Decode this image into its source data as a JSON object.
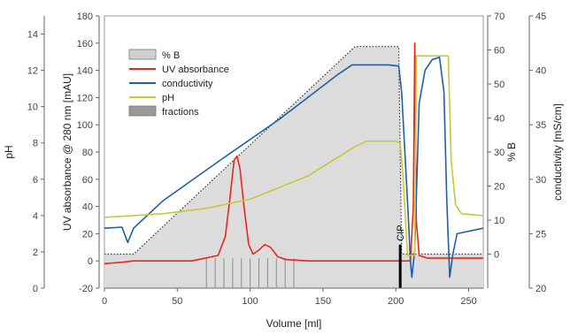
{
  "chart_data": {
    "type": "line",
    "x_axis": {
      "label": "Volume [ml]",
      "range": [
        0,
        260
      ],
      "ticks": [
        0,
        50,
        100,
        150,
        200,
        250
      ]
    },
    "axes": {
      "uv": {
        "label": "UV absorbance @ 280 nm [mAU]",
        "range": [
          -20,
          180
        ],
        "ticks": [
          -20,
          0,
          20,
          40,
          60,
          80,
          100,
          120,
          140,
          160,
          180
        ]
      },
      "ph": {
        "label": "pH",
        "range": [
          0,
          15
        ],
        "ticks": [
          0,
          2,
          4,
          6,
          8,
          10,
          12,
          14
        ]
      },
      "percent_b": {
        "label": "% B",
        "range": [
          -10,
          70
        ],
        "ticks": [
          0,
          10,
          20,
          30,
          40,
          50,
          60,
          70
        ]
      },
      "conductivity": {
        "label": "conductivity [mS/cm]",
        "range": [
          20,
          45
        ],
        "ticks": [
          20,
          25,
          30,
          35,
          40,
          45
        ]
      }
    },
    "legend": {
      "placement": "upper-left",
      "entries": [
        {
          "label": "% B",
          "key": "percent_b",
          "symbol": "fill",
          "color": "#d0d0d0"
        },
        {
          "label": "UV absorbance",
          "key": "uv",
          "symbol": "line",
          "color": "#e8251f"
        },
        {
          "label": "conductivity",
          "key": "conductivity",
          "symbol": "line",
          "color": "#1f5fa8"
        },
        {
          "label": "pH",
          "key": "ph",
          "symbol": "line",
          "color": "#c8c83a"
        },
        {
          "label": "fractions",
          "key": "fractions",
          "symbol": "fill",
          "color": "#9a9a9a"
        }
      ]
    },
    "series": [
      {
        "name": "% B",
        "axis": "percent_b",
        "color": "#808080",
        "fill": "#dcdcdc",
        "points": [
          [
            0,
            0
          ],
          [
            20,
            0
          ],
          [
            172,
            61
          ],
          [
            202,
            61
          ],
          [
            204,
            0
          ],
          [
            260,
            0
          ]
        ]
      },
      {
        "name": "UV absorbance",
        "axis": "uv",
        "color": "#e8251f",
        "points": [
          [
            0,
            -2
          ],
          [
            12,
            -1
          ],
          [
            20,
            0
          ],
          [
            60,
            0
          ],
          [
            78,
            4
          ],
          [
            83,
            18
          ],
          [
            86,
            45
          ],
          [
            89,
            74
          ],
          [
            91,
            77
          ],
          [
            93,
            68
          ],
          [
            96,
            38
          ],
          [
            99,
            12
          ],
          [
            102,
            5
          ],
          [
            106,
            8
          ],
          [
            110,
            12
          ],
          [
            114,
            10
          ],
          [
            119,
            3
          ],
          [
            125,
            1
          ],
          [
            140,
            0
          ],
          [
            210,
            0
          ],
          [
            212,
            40
          ],
          [
            213,
            160
          ],
          [
            214,
            30
          ],
          [
            216,
            4
          ],
          [
            222,
            2
          ],
          [
            260,
            2
          ]
        ]
      },
      {
        "name": "conductivity",
        "axis": "conductivity",
        "color": "#1f5fa8",
        "points": [
          [
            0,
            25.5
          ],
          [
            12,
            25.6
          ],
          [
            16,
            24.2
          ],
          [
            20,
            25.5
          ],
          [
            40,
            28.0
          ],
          [
            80,
            31.8
          ],
          [
            120,
            35.5
          ],
          [
            160,
            39.6
          ],
          [
            170,
            40.5
          ],
          [
            180,
            40.5
          ],
          [
            195,
            40.5
          ],
          [
            202,
            40.4
          ],
          [
            204,
            38.0
          ],
          [
            206,
            33.0
          ],
          [
            208,
            28.0
          ],
          [
            210,
            22.5
          ],
          [
            211,
            21.0
          ],
          [
            213,
            23.5
          ],
          [
            216,
            37.0
          ],
          [
            220,
            40.0
          ],
          [
            225,
            41.0
          ],
          [
            230,
            41.2
          ],
          [
            233,
            38.0
          ],
          [
            235,
            28.0
          ],
          [
            237,
            21.0
          ],
          [
            239,
            23.0
          ],
          [
            242,
            25.0
          ],
          [
            260,
            25.5
          ]
        ]
      },
      {
        "name": "pH",
        "axis": "ph",
        "color": "#c8c83a",
        "points": [
          [
            0,
            3.9
          ],
          [
            20,
            4.0
          ],
          [
            40,
            4.1
          ],
          [
            70,
            4.4
          ],
          [
            100,
            4.9
          ],
          [
            140,
            6.2
          ],
          [
            172,
            7.8
          ],
          [
            180,
            8.1
          ],
          [
            200,
            8.1
          ],
          [
            203,
            8.0
          ],
          [
            205,
            6.0
          ],
          [
            208,
            1.8
          ],
          [
            213,
            1.8
          ],
          [
            214,
            12.8
          ],
          [
            236,
            12.8
          ],
          [
            238,
            7.0
          ],
          [
            241,
            4.6
          ],
          [
            245,
            4.1
          ],
          [
            260,
            4.0
          ]
        ]
      }
    ],
    "fractions": {
      "from": 70,
      "to": 130,
      "count": 11
    },
    "annotations": [
      {
        "text": "CIP",
        "x": 203
      }
    ]
  }
}
